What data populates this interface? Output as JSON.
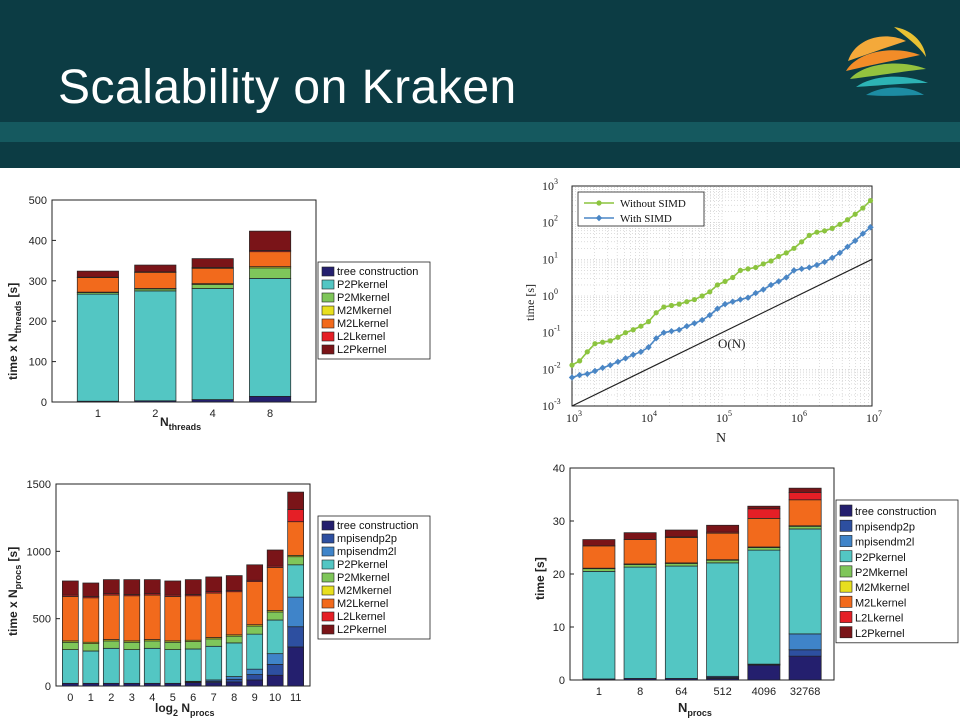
{
  "slide": {
    "title": "Scalability on Kraken"
  },
  "colors": {
    "header": "#0c3c44",
    "header_band": "#15595f",
    "title_text": "#ffffff"
  },
  "logo": {
    "name": "KAUST logo"
  },
  "chart_data": [
    {
      "id": "threads",
      "type": "bar",
      "stacked": true,
      "categories": [
        "1",
        "2",
        "4",
        "8"
      ],
      "xlabel_main": "N",
      "xlabel_sub": "threads",
      "ylabel_main": "time x N",
      "ylabel_sub": "threads",
      "ylabel_unit": " [s]",
      "ylim": [
        0,
        500
      ],
      "yticks": [
        0,
        100,
        200,
        300,
        400,
        500
      ],
      "legend_position": "right",
      "series": [
        {
          "name": "tree construction",
          "color": "#241f6e",
          "values": [
            2,
            3,
            6,
            14
          ]
        },
        {
          "name": "P2Pkernel",
          "color": "#53c6c3",
          "values": [
            265,
            272,
            275,
            292
          ]
        },
        {
          "name": "P2Mkernel",
          "color": "#7fc65a",
          "values": [
            4,
            5,
            10,
            26
          ]
        },
        {
          "name": "M2Mkernel",
          "color": "#e8df1e",
          "values": [
            1,
            1,
            2,
            3
          ]
        },
        {
          "name": "M2Lkernel",
          "color": "#f26a1c",
          "values": [
            36,
            40,
            38,
            37
          ]
        },
        {
          "name": "L2Lkernel",
          "color": "#e51f26",
          "values": [
            1,
            1,
            2,
            3
          ]
        },
        {
          "name": "L2Pkernel",
          "color": "#7a1418",
          "values": [
            15,
            17,
            22,
            48
          ]
        }
      ]
    },
    {
      "id": "simd",
      "type": "line",
      "log_x": true,
      "log_y": true,
      "xlabel": "N",
      "ylabel": "time [s]",
      "xlim": [
        1000,
        10000000
      ],
      "ylim": [
        0.001,
        1000
      ],
      "xtick_exponents": [
        3,
        4,
        5,
        6,
        7
      ],
      "ytick_exponents": [
        -3,
        -2,
        -1,
        0,
        1,
        2,
        3
      ],
      "annotation": "O(N)",
      "legend_position": "top-left",
      "series": [
        {
          "name": "Without SIMD",
          "color": "#8cc43f",
          "marker": "circle",
          "x": [
            1000,
            1265,
            1600,
            2024,
            2560,
            3238,
            4095,
            5180,
            6551,
            8286,
            10480,
            13256,
            16768,
            21210,
            26827,
            33934,
            42922,
            54291,
            68672,
            86863,
            109872,
            138976,
            175789,
            222354,
            281252,
            355753,
            449987,
            569187,
            719961,
            910674,
            1151900,
            1457025,
            1842976,
            2331167,
            2948682,
            3729773,
            4717772,
            5967484,
            7548235,
            9547717
          ],
          "y": [
            0.013,
            0.017,
            0.03,
            0.05,
            0.055,
            0.06,
            0.075,
            0.1,
            0.12,
            0.15,
            0.2,
            0.35,
            0.5,
            0.55,
            0.6,
            0.7,
            0.8,
            1.0,
            1.3,
            2.0,
            2.5,
            3.2,
            5.0,
            5.5,
            6.0,
            7.5,
            9.0,
            12.0,
            15.0,
            20.0,
            30.0,
            45.0,
            55.0,
            60.0,
            70.0,
            90.0,
            120.0,
            170.0,
            250.0,
            400.0
          ]
        },
        {
          "name": "With SIMD",
          "color": "#4a86c5",
          "marker": "diamond",
          "x": [
            1000,
            1265,
            1600,
            2024,
            2560,
            3238,
            4095,
            5180,
            6551,
            8286,
            10480,
            13256,
            16768,
            21210,
            26827,
            33934,
            42922,
            54291,
            68672,
            86863,
            109872,
            138976,
            175789,
            222354,
            281252,
            355753,
            449987,
            569187,
            719961,
            910674,
            1151900,
            1457025,
            1842976,
            2331167,
            2948682,
            3729773,
            4717772,
            5967484,
            7548235,
            9547717
          ],
          "y": [
            0.006,
            0.007,
            0.0075,
            0.009,
            0.011,
            0.013,
            0.016,
            0.02,
            0.025,
            0.03,
            0.04,
            0.07,
            0.1,
            0.11,
            0.12,
            0.15,
            0.18,
            0.22,
            0.3,
            0.45,
            0.6,
            0.7,
            0.8,
            0.9,
            1.2,
            1.5,
            2.0,
            2.5,
            3.2,
            5.0,
            5.5,
            6.0,
            7.0,
            8.5,
            11.0,
            15.0,
            22.0,
            32.0,
            50.0,
            75.0
          ]
        },
        {
          "name": "",
          "color": "#222222",
          "marker": "none",
          "x": [
            1000,
            10000000
          ],
          "y": [
            0.001,
            10
          ]
        }
      ]
    },
    {
      "id": "procs",
      "type": "bar",
      "stacked": true,
      "categories": [
        "0",
        "1",
        "2",
        "3",
        "4",
        "5",
        "6",
        "7",
        "8",
        "9",
        "10",
        "11"
      ],
      "xlabel_main": "log",
      "xlabel_sub": "2",
      "xlabel_tail": " N",
      "xlabel_sub2": "procs",
      "ylabel_main": "time x N",
      "ylabel_sub": "procs",
      "ylabel_unit": " [s]",
      "ylim": [
        0,
        1500
      ],
      "yticks": [
        0,
        500,
        1000,
        1500
      ],
      "legend_position": "right",
      "series": [
        {
          "name": "tree construction",
          "color": "#241f6e",
          "values": [
            20,
            20,
            20,
            20,
            20,
            20,
            25,
            25,
            30,
            45,
            80,
            290
          ]
        },
        {
          "name": "mpisendp2p",
          "color": "#2d4fa0",
          "values": [
            0,
            0,
            0,
            0,
            0,
            0,
            5,
            10,
            20,
            40,
            80,
            150
          ]
        },
        {
          "name": "mpisendm2l",
          "color": "#3f84c9",
          "values": [
            0,
            0,
            0,
            0,
            0,
            0,
            5,
            10,
            20,
            40,
            80,
            220
          ]
        },
        {
          "name": "P2Pkernel",
          "color": "#53c6c3",
          "values": [
            250,
            240,
            260,
            250,
            260,
            250,
            240,
            250,
            250,
            260,
            250,
            240
          ]
        },
        {
          "name": "P2Mkernel",
          "color": "#7fc65a",
          "values": [
            55,
            55,
            55,
            55,
            55,
            55,
            55,
            55,
            50,
            60,
            60,
            60
          ]
        },
        {
          "name": "M2Mkernel",
          "color": "#e8df1e",
          "values": [
            10,
            10,
            10,
            10,
            10,
            10,
            10,
            10,
            10,
            10,
            10,
            10
          ]
        },
        {
          "name": "M2Lkernel",
          "color": "#f26a1c",
          "values": [
            330,
            330,
            330,
            335,
            330,
            330,
            330,
            330,
            320,
            320,
            320,
            250
          ]
        },
        {
          "name": "L2Lkernel",
          "color": "#e51f26",
          "values": [
            10,
            10,
            10,
            10,
            10,
            10,
            10,
            10,
            10,
            10,
            10,
            90
          ]
        },
        {
          "name": "L2Pkernel",
          "color": "#7a1418",
          "values": [
            105,
            100,
            105,
            110,
            105,
            105,
            110,
            110,
            110,
            115,
            120,
            130
          ]
        }
      ]
    },
    {
      "id": "weak",
      "type": "bar",
      "stacked": true,
      "categories": [
        "1",
        "8",
        "64",
        "512",
        "4096",
        "32768"
      ],
      "xlabel_main": "N",
      "xlabel_sub": "procs",
      "ylabel_main": "time",
      "ylabel_sub": "",
      "ylabel_unit": " [s]",
      "ylim": [
        0,
        40
      ],
      "yticks": [
        0,
        10,
        20,
        30,
        40
      ],
      "legend_position": "right",
      "series": [
        {
          "name": "tree construction",
          "color": "#241f6e",
          "values": [
            0.2,
            0.3,
            0.3,
            0.3,
            2.8,
            4.5
          ]
        },
        {
          "name": "mpisendp2p",
          "color": "#2d4fa0",
          "values": [
            0,
            0,
            0,
            0.2,
            0.1,
            1.2
          ]
        },
        {
          "name": "mpisendm2l",
          "color": "#3f84c9",
          "values": [
            0,
            0,
            0,
            0.2,
            0.1,
            3.0
          ]
        },
        {
          "name": "P2Pkernel",
          "color": "#53c6c3",
          "values": [
            20.3,
            21.0,
            21.2,
            21.4,
            21.5,
            19.8
          ]
        },
        {
          "name": "P2Mkernel",
          "color": "#7fc65a",
          "values": [
            0.5,
            0.5,
            0.5,
            0.5,
            0.5,
            0.5
          ]
        },
        {
          "name": "M2Mkernel",
          "color": "#e8df1e",
          "values": [
            0.1,
            0.1,
            0.1,
            0.1,
            0.1,
            0.1
          ]
        },
        {
          "name": "M2Lkernel",
          "color": "#f26a1c",
          "values": [
            4.2,
            4.6,
            4.8,
            5.0,
            5.4,
            4.9
          ]
        },
        {
          "name": "L2Lkernel",
          "color": "#e51f26",
          "values": [
            0,
            0,
            0.1,
            0.2,
            1.8,
            1.4
          ]
        },
        {
          "name": "L2Pkernel",
          "color": "#7a1418",
          "values": [
            1.2,
            1.3,
            1.3,
            1.3,
            0.5,
            0.8
          ]
        }
      ]
    }
  ]
}
